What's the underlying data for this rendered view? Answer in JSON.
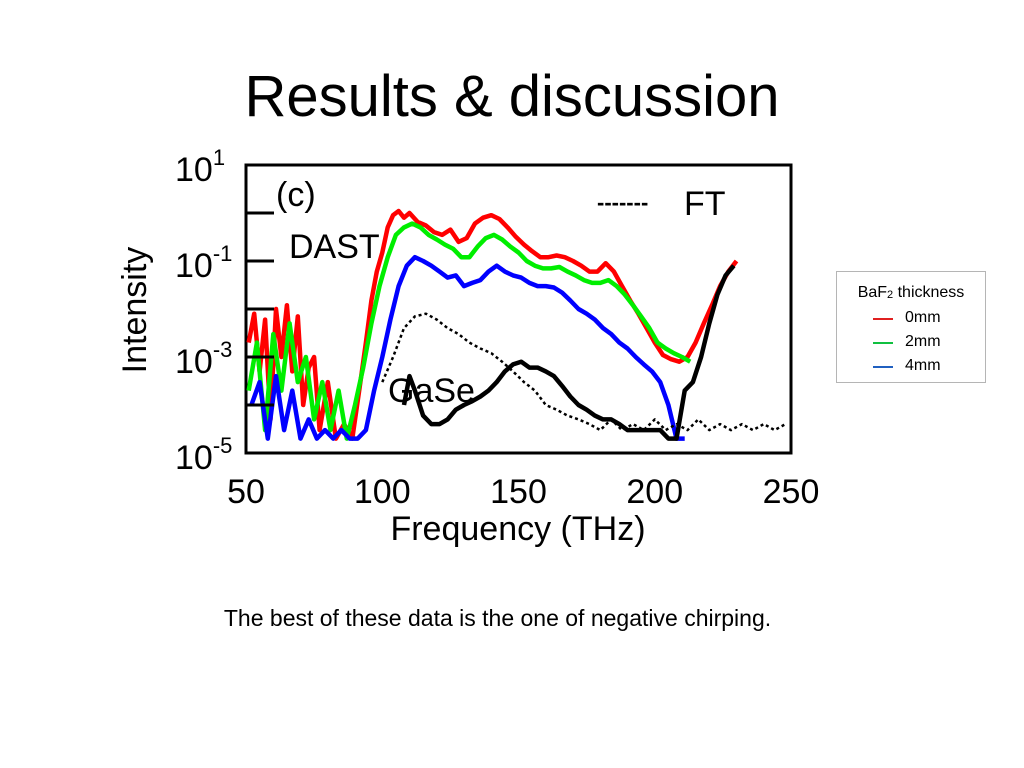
{
  "slide": {
    "title": "Results & discussion",
    "caption": "The best of these data is the one of negative chirping."
  },
  "chart_data": {
    "type": "line",
    "xlabel": "Frequency (THz)",
    "ylabel": "Intensity",
    "xlim": [
      50,
      250
    ],
    "ylim": [
      1e-05,
      10
    ],
    "yscale": "log",
    "xticks": [
      "50",
      "100",
      "150",
      "200",
      "250"
    ],
    "yticks": [
      {
        "base": "10",
        "exp": "1",
        "value": 10
      },
      {
        "base": "10",
        "exp": "-1",
        "value": 0.1
      },
      {
        "base": "10",
        "exp": "-3",
        "value": 0.001
      },
      {
        "base": "10",
        "exp": "-5",
        "value": 1e-05
      }
    ],
    "annotations": [
      "(c)",
      "DAST",
      "GaSe",
      "-------",
      "FT"
    ],
    "series": [
      {
        "name": "0mm",
        "color": "#ff0000",
        "x": [
          51,
          53,
          55,
          57,
          59,
          61,
          63,
          65,
          67,
          69,
          71,
          73,
          75,
          77,
          80,
          83,
          86,
          89,
          92,
          94,
          96,
          98,
          100,
          102,
          104,
          106,
          108,
          110,
          113,
          116,
          119,
          122,
          125,
          128,
          131,
          134,
          137,
          140,
          143,
          146,
          149,
          152,
          155,
          158,
          161,
          164,
          167,
          170,
          173,
          176,
          179,
          182,
          185,
          188,
          191,
          194,
          197,
          200,
          203,
          206,
          209,
          212,
          215,
          218,
          221,
          224,
          227,
          230
        ],
        "y": [
          0.002,
          0.008,
          0.0005,
          0.006,
          5e-05,
          0.01,
          0.001,
          0.012,
          0.0005,
          0.007,
          0.0001,
          0.0006,
          0.001,
          3e-05,
          0.0003,
          2e-05,
          4e-05,
          2e-05,
          0.0003,
          0.002,
          0.015,
          0.06,
          0.15,
          0.5,
          0.9,
          1.1,
          0.8,
          1.0,
          0.65,
          0.55,
          0.4,
          0.35,
          0.45,
          0.25,
          0.3,
          0.6,
          0.8,
          0.9,
          0.75,
          0.5,
          0.32,
          0.22,
          0.16,
          0.12,
          0.12,
          0.13,
          0.12,
          0.1,
          0.08,
          0.06,
          0.06,
          0.09,
          0.06,
          0.03,
          0.015,
          0.008,
          0.004,
          0.002,
          0.0011,
          0.0009,
          0.0008,
          0.001,
          0.002,
          0.005,
          0.012,
          0.03,
          0.06,
          0.1
        ]
      },
      {
        "name": "2mm",
        "color": "#00ee00",
        "x": [
          51,
          54,
          57,
          60,
          63,
          66,
          69,
          72,
          75,
          78,
          81,
          84,
          87,
          90,
          93,
          96,
          99,
          102,
          105,
          108,
          111,
          114,
          117,
          120,
          123,
          126,
          129,
          132,
          135,
          138,
          141,
          144,
          147,
          150,
          153,
          156,
          159,
          162,
          165,
          168,
          171,
          174,
          177,
          180,
          183,
          186,
          189,
          192,
          195,
          198,
          201,
          204,
          207,
          210,
          213
        ],
        "y": [
          0.0002,
          0.002,
          3e-05,
          0.003,
          0.0002,
          0.005,
          0.0003,
          0.001,
          5e-05,
          0.0003,
          3e-05,
          0.0002,
          2e-05,
          0.0001,
          0.0006,
          0.005,
          0.03,
          0.12,
          0.35,
          0.5,
          0.6,
          0.5,
          0.35,
          0.28,
          0.22,
          0.18,
          0.12,
          0.12,
          0.2,
          0.3,
          0.35,
          0.28,
          0.2,
          0.15,
          0.1,
          0.08,
          0.07,
          0.07,
          0.075,
          0.06,
          0.05,
          0.04,
          0.035,
          0.035,
          0.04,
          0.03,
          0.02,
          0.012,
          0.007,
          0.004,
          0.002,
          0.0015,
          0.0012,
          0.001,
          0.0008
        ]
      },
      {
        "name": "4mm",
        "color": "#0000ff",
        "x": [
          52,
          55,
          58,
          61,
          64,
          67,
          70,
          73,
          76,
          79,
          82,
          85,
          88,
          91,
          94,
          97,
          100,
          103,
          106,
          109,
          112,
          115,
          118,
          121,
          124,
          127,
          130,
          133,
          136,
          139,
          142,
          145,
          148,
          151,
          154,
          157,
          160,
          163,
          166,
          169,
          172,
          175,
          178,
          181,
          184,
          187,
          190,
          193,
          196,
          199,
          202,
          205,
          208,
          211
        ],
        "y": [
          0.0001,
          0.0003,
          2e-05,
          0.0004,
          3e-05,
          0.0002,
          2e-05,
          5e-05,
          2e-05,
          3e-05,
          2e-05,
          3e-05,
          2e-05,
          2e-05,
          3e-05,
          0.0002,
          0.001,
          0.006,
          0.03,
          0.08,
          0.12,
          0.1,
          0.08,
          0.06,
          0.045,
          0.05,
          0.03,
          0.035,
          0.04,
          0.06,
          0.08,
          0.06,
          0.05,
          0.045,
          0.035,
          0.03,
          0.03,
          0.028,
          0.022,
          0.015,
          0.01,
          0.008,
          0.006,
          0.004,
          0.003,
          0.002,
          0.0015,
          0.001,
          0.0007,
          0.0005,
          0.0003,
          0.0001,
          2e-05,
          2e-05
        ]
      },
      {
        "name": "GaSe",
        "color": "#000000",
        "x": [
          108,
          110,
          112,
          115,
          118,
          121,
          124,
          127,
          130,
          133,
          136,
          139,
          142,
          145,
          148,
          151,
          154,
          157,
          160,
          163,
          166,
          169,
          172,
          175,
          178,
          181,
          184,
          187,
          190,
          193,
          196,
          199,
          202,
          205,
          208,
          211,
          214,
          217,
          220,
          223,
          226,
          229
        ],
        "y": [
          0.0001,
          0.0004,
          0.0002,
          6e-05,
          4e-05,
          4e-05,
          5e-05,
          8e-05,
          0.0001,
          0.00012,
          0.00015,
          0.0002,
          0.0003,
          0.0005,
          0.0007,
          0.0008,
          0.0006,
          0.0006,
          0.0005,
          0.0004,
          0.00025,
          0.00015,
          0.0001,
          8e-05,
          6e-05,
          5e-05,
          5e-05,
          4e-05,
          3e-05,
          3e-05,
          3e-05,
          3e-05,
          3e-05,
          2e-05,
          2e-05,
          0.0002,
          0.0003,
          0.001,
          0.005,
          0.02,
          0.05,
          0.08
        ]
      },
      {
        "name": "FT",
        "color": "#000000",
        "dashed": true,
        "x": [
          100,
          104,
          108,
          112,
          116,
          120,
          124,
          128,
          132,
          136,
          140,
          144,
          148,
          152,
          156,
          160,
          164,
          168,
          172,
          176,
          180,
          184,
          188,
          192,
          196,
          200,
          204,
          208,
          212,
          216,
          220,
          224,
          228,
          232,
          236,
          240,
          244,
          248
        ],
        "y": [
          0.0003,
          0.001,
          0.004,
          0.007,
          0.008,
          0.006,
          0.004,
          0.003,
          0.002,
          0.0015,
          0.0012,
          0.0008,
          0.0005,
          0.0003,
          0.0002,
          0.0001,
          8e-05,
          6e-05,
          5e-05,
          4e-05,
          3e-05,
          5e-05,
          3e-05,
          4e-05,
          3e-05,
          5e-05,
          3e-05,
          4e-05,
          3e-05,
          5e-05,
          3e-05,
          4e-05,
          3e-05,
          4e-05,
          3e-05,
          4e-05,
          3e-05,
          4e-05
        ]
      }
    ],
    "legend": {
      "title_base": "BaF",
      "title_sub": "2",
      "title_rest": " thickness",
      "items": [
        {
          "label": "0mm",
          "color": "#e02020"
        },
        {
          "label": "2mm",
          "color": "#10c040"
        },
        {
          "label": "4mm",
          "color": "#2060c0"
        }
      ]
    }
  }
}
